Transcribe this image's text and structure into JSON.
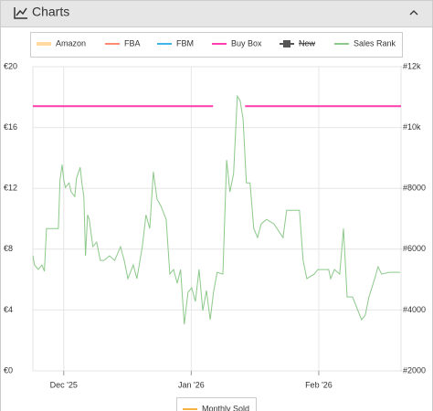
{
  "panel": {
    "title": "Charts"
  },
  "chart_data": {
    "type": "line",
    "series": [
      {
        "name": "Amazon",
        "color": "#ffd9a0"
      },
      {
        "name": "FBA",
        "color": "#ff8a70"
      },
      {
        "name": "FBM",
        "color": "#3fb4e6"
      },
      {
        "name": "Buy Box",
        "color": "#ff3cac",
        "x": [
          -7.5,
          36.3,
          40,
          44.1,
          82
        ],
        "values": [
          17.4,
          17.4,
          null,
          17.4,
          17.4
        ]
      },
      {
        "name": "New",
        "color": "#555555",
        "hidden": true
      },
      {
        "name": "Sales Rank",
        "color": "#8cc98a",
        "axis": "y2",
        "x": [
          -7.5,
          -7.1,
          -6.2,
          -5.3,
          -4.7,
          -4.2,
          -1.3,
          -0.9,
          -0.4,
          0,
          0.4,
          1.3,
          1.8,
          2.7,
          3.1,
          4.0,
          4.4,
          4.9,
          5.3,
          5.8,
          6.2,
          7.1,
          8.0,
          8.9,
          9.8,
          11.1,
          12.4,
          13.8,
          14.7,
          15.6,
          16.9,
          17.8,
          19.1,
          20.0,
          20.9,
          21.8,
          22.7,
          23.6,
          24.9,
          25.8,
          26.7,
          27.6,
          28.4,
          29.3,
          30.2,
          31.1,
          32.0,
          32.9,
          33.8,
          34.7,
          35.6,
          36.4,
          37.3,
          38.7,
          39.6,
          40.4,
          41.3,
          42.2,
          42.9,
          43.6,
          44.4,
          45.3,
          46.2,
          47.1,
          48.0,
          49.3,
          51.1,
          53.3,
          54.2,
          57.3,
          58.2,
          59.1,
          60.9,
          61.8,
          64.4,
          64.9,
          65.8,
          67.1,
          68.0,
          68.9,
          70.2,
          72.4,
          73.3,
          74.2,
          75.6,
          76.4,
          77.3,
          79.1,
          81.8
        ],
        "values": [
          5780,
          5480,
          5330,
          5480,
          5270,
          6680,
          6680,
          8270,
          8780,
          8270,
          8030,
          8180,
          7880,
          7730,
          8330,
          8690,
          8180,
          7730,
          5780,
          7130,
          6980,
          6080,
          6230,
          5630,
          5630,
          5780,
          5630,
          6080,
          5630,
          5030,
          5480,
          5030,
          6080,
          7130,
          6680,
          8540,
          7640,
          7430,
          6980,
          5180,
          5330,
          4880,
          5330,
          3530,
          4580,
          4730,
          4280,
          5330,
          3980,
          4640,
          3680,
          4580,
          5240,
          5180,
          8930,
          7880,
          8480,
          11030,
          10880,
          10280,
          8180,
          8180,
          6680,
          6380,
          6830,
          6980,
          6830,
          6380,
          7280,
          7280,
          5630,
          5030,
          5180,
          5330,
          5330,
          5030,
          5330,
          5180,
          6680,
          4430,
          4430,
          3680,
          3830,
          4430,
          5030,
          5420,
          5180,
          5240,
          5240
        ]
      }
    ],
    "xlim": [
      -7.5,
      82
    ],
    "xticks": [
      {
        "value": 0,
        "label": "Dec '25"
      },
      {
        "value": 31,
        "label": "Jan '26"
      },
      {
        "value": 62,
        "label": "Feb '26"
      }
    ],
    "ylim": [
      0,
      20
    ],
    "yticks": [
      {
        "value": 0,
        "label": "€0"
      },
      {
        "value": 4,
        "label": "€4"
      },
      {
        "value": 8,
        "label": "€8"
      },
      {
        "value": 12,
        "label": "€12"
      },
      {
        "value": 16,
        "label": "€16"
      },
      {
        "value": 20,
        "label": "€20"
      }
    ],
    "y2lim": [
      2000,
      12000
    ],
    "y2ticks": [
      {
        "value": 2000,
        "label": "#2000"
      },
      {
        "value": 4000,
        "label": "#4000"
      },
      {
        "value": 6000,
        "label": "#6000"
      },
      {
        "value": 8000,
        "label": "#8000"
      },
      {
        "value": 10000,
        "label": "#10k"
      },
      {
        "value": 12000,
        "label": "#12k"
      }
    ],
    "grid": true,
    "extra_legend": {
      "name": "Monthly Sold",
      "color": "#f5b342"
    }
  }
}
